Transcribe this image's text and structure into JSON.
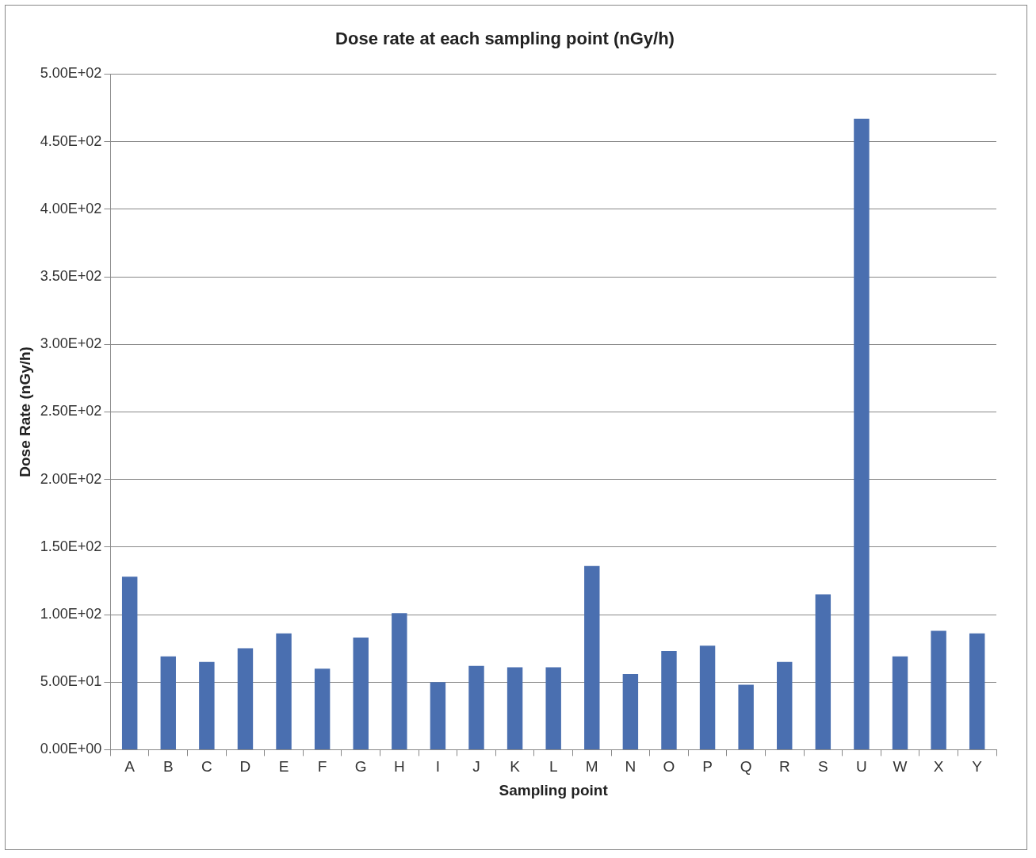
{
  "chart_data": {
    "type": "bar",
    "title": "Dose rate at each sampling point (nGy/h)",
    "xlabel": "Sampling point",
    "ylabel": "Dose Rate (nGy/h)",
    "categories": [
      "A",
      "B",
      "C",
      "D",
      "E",
      "F",
      "G",
      "H",
      "I",
      "J",
      "K",
      "L",
      "M",
      "N",
      "O",
      "P",
      "Q",
      "R",
      "S",
      "U",
      "W",
      "X",
      "Y"
    ],
    "values": [
      128,
      69,
      65,
      75,
      86,
      60,
      83,
      101,
      50,
      62,
      61,
      61,
      136,
      56,
      73,
      77,
      48,
      65,
      115,
      467,
      69,
      88,
      86
    ],
    "color": "#4a6fb0",
    "ylim": [
      0,
      500
    ],
    "yticks": [
      {
        "value": 0,
        "label": "0.00E+00"
      },
      {
        "value": 50,
        "label": "5.00E+01"
      },
      {
        "value": 100,
        "label": "1.00E+02"
      },
      {
        "value": 150,
        "label": "1.50E+02"
      },
      {
        "value": 200,
        "label": "2.00E+02"
      },
      {
        "value": 250,
        "label": "2.50E+02"
      },
      {
        "value": 300,
        "label": "3.00E+02"
      },
      {
        "value": 350,
        "label": "3.50E+02"
      },
      {
        "value": 400,
        "label": "4.00E+02"
      },
      {
        "value": 450,
        "label": "4.50E+02"
      },
      {
        "value": 500,
        "label": "5.00E+02"
      }
    ],
    "grid": "y",
    "legend": false
  }
}
